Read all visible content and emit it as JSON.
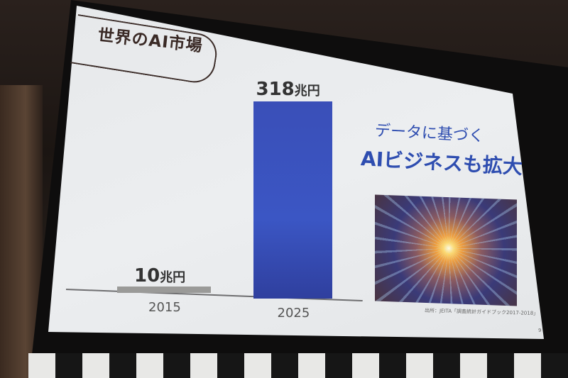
{
  "slide": {
    "title": "世界のAI市場",
    "headline_line1": "データに基づく",
    "headline_line2": "AIビジネスも拡大",
    "image_description_icon": "starburst-data-image",
    "source": "出所：JEITA「調査統計ガイドブック2017-2018」",
    "page_number": "9"
  },
  "chart_data": {
    "type": "bar",
    "categories": [
      "2015",
      "2025"
    ],
    "values": [
      10,
      318
    ],
    "data_labels": [
      {
        "number": "10",
        "unit": "兆円"
      },
      {
        "number": "318",
        "unit": "兆円"
      }
    ],
    "unit": "兆円",
    "title": "世界のAI市場",
    "xlabel": "",
    "ylabel": "",
    "grid": false,
    "colors": [
      "#9a9a98",
      "#3a52b8"
    ]
  }
}
